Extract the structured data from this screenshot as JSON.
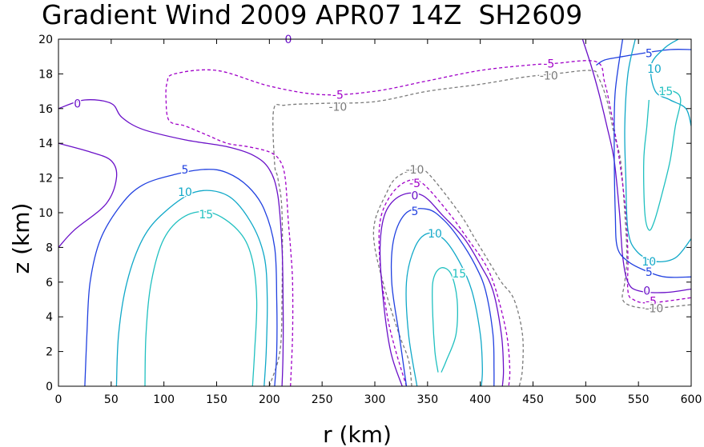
{
  "chart_data": {
    "type": "contour",
    "title": "Gradient Wind 2009 APR07 14Z  SH2609",
    "xlabel": "r (km)",
    "ylabel": "z (km)",
    "xlim": [
      0,
      600
    ],
    "ylim": [
      0,
      20
    ],
    "xticks": [
      "0",
      "50",
      "100",
      "150",
      "200",
      "250",
      "300",
      "350",
      "400",
      "450",
      "500",
      "550",
      "600"
    ],
    "yticks": [
      "0",
      "2",
      "4",
      "6",
      "8",
      "10",
      "12",
      "14",
      "16",
      "18",
      "20"
    ],
    "grid": false,
    "colors": {
      "-10": "#7a7a7a",
      "-5": "#a000c8",
      "0": "#6a10c8",
      "5": "#2040e0",
      "10": "#10a8c8",
      "15": "#20c0c0"
    },
    "contours": [
      {
        "level": -10,
        "style": "dashed",
        "points": [
          [
            200,
            0
          ],
          [
            210,
            2
          ],
          [
            212,
            5
          ],
          [
            212,
            10
          ],
          [
            208,
            12
          ],
          [
            205,
            12.8
          ],
          [
            204,
            15.9
          ],
          [
            215,
            16.2
          ],
          [
            250,
            16.3
          ],
          [
            300,
            16.4
          ],
          [
            350,
            17
          ],
          [
            400,
            17.4
          ],
          [
            440,
            17.8
          ],
          [
            470,
            18
          ],
          [
            505,
            18.2
          ],
          [
            512,
            17.8
          ],
          [
            520,
            16.5
          ],
          [
            527,
            14.5
          ],
          [
            533,
            13
          ],
          [
            537,
            10
          ],
          [
            539,
            7.5
          ],
          [
            537,
            6
          ],
          [
            535,
            5
          ],
          [
            545,
            4.6
          ],
          [
            565,
            4.5
          ],
          [
            600,
            4.7
          ]
        ]
      },
      {
        "level": -10,
        "style": "dashed",
        "points": [
          [
            335,
            0
          ],
          [
            332,
            1.5
          ],
          [
            323,
            3
          ],
          [
            310,
            5.5
          ],
          [
            300,
            8
          ],
          [
            300,
            9.5
          ],
          [
            310,
            11
          ],
          [
            320,
            12
          ],
          [
            338,
            12.5
          ],
          [
            350,
            12.3
          ],
          [
            380,
            10
          ],
          [
            395,
            8.5
          ],
          [
            410,
            7
          ],
          [
            420,
            6
          ],
          [
            432,
            5
          ],
          [
            440,
            3
          ],
          [
            440,
            1
          ],
          [
            437,
            0
          ]
        ]
      },
      {
        "level": -5,
        "style": "dashed",
        "points": [
          [
            220,
            0
          ],
          [
            222,
            3
          ],
          [
            222,
            6
          ],
          [
            220,
            8
          ],
          [
            218,
            9.5
          ],
          [
            215,
            12
          ],
          [
            210,
            13
          ],
          [
            200,
            13.5
          ],
          [
            180,
            13.8
          ],
          [
            160,
            14
          ],
          [
            140,
            14.5
          ],
          [
            120,
            15
          ],
          [
            105,
            15.3
          ],
          [
            102,
            16.5
          ],
          [
            103,
            17.5
          ],
          [
            110,
            18
          ],
          [
            150,
            18.2
          ],
          [
            200,
            17.3
          ],
          [
            250,
            16.8
          ],
          [
            300,
            17
          ],
          [
            350,
            17.6
          ],
          [
            400,
            18.2
          ],
          [
            445,
            18.5
          ],
          [
            470,
            18.6
          ],
          [
            510,
            18.7
          ],
          [
            518,
            17.5
          ],
          [
            525,
            15.5
          ],
          [
            532,
            13
          ],
          [
            538,
            10
          ],
          [
            540,
            7.5
          ],
          [
            540,
            5.5
          ],
          [
            545,
            5
          ],
          [
            560,
            4.8
          ],
          [
            600,
            5.1
          ]
        ]
      },
      {
        "level": -5,
        "style": "dashed",
        "points": [
          [
            330,
            0
          ],
          [
            320,
            2
          ],
          [
            312,
            4
          ],
          [
            305,
            7
          ],
          [
            305,
            9.5
          ],
          [
            315,
            11
          ],
          [
            330,
            11.8
          ],
          [
            345,
            11.7
          ],
          [
            370,
            10
          ],
          [
            388,
            8.5
          ],
          [
            405,
            7
          ],
          [
            415,
            5.5
          ],
          [
            425,
            3
          ],
          [
            428,
            1
          ],
          [
            427,
            0
          ]
        ]
      },
      {
        "level": 0,
        "style": "solid",
        "points": [
          [
            0,
            8
          ],
          [
            15,
            9
          ],
          [
            45,
            10.5
          ],
          [
            55,
            12
          ],
          [
            50,
            13
          ],
          [
            30,
            13.5
          ],
          [
            0,
            14
          ]
        ]
      },
      {
        "level": 0,
        "style": "solid",
        "points": [
          [
            0,
            16
          ],
          [
            25,
            16.5
          ],
          [
            50,
            16.3
          ],
          [
            60,
            15.5
          ],
          [
            80,
            14.8
          ],
          [
            120,
            14.2
          ],
          [
            160,
            13.8
          ],
          [
            185,
            13.3
          ],
          [
            200,
            12.5
          ],
          [
            208,
            11
          ],
          [
            212,
            8
          ],
          [
            213,
            5
          ],
          [
            213,
            2
          ],
          [
            212,
            0
          ]
        ]
      },
      {
        "level": 0,
        "style": "solid",
        "points": [
          [
            326,
            0
          ],
          [
            315,
            2
          ],
          [
            308,
            5
          ],
          [
            305,
            8
          ],
          [
            310,
            10
          ],
          [
            325,
            11
          ],
          [
            345,
            11
          ],
          [
            365,
            9.8
          ],
          [
            385,
            8.5
          ],
          [
            400,
            7
          ],
          [
            412,
            5.5
          ],
          [
            420,
            3
          ],
          [
            422,
            1
          ],
          [
            421,
            0
          ]
        ]
      },
      {
        "level": 0,
        "style": "solid",
        "points": [
          [
            497,
            20
          ],
          [
            505,
            18.5
          ],
          [
            512,
            17
          ],
          [
            520,
            15
          ],
          [
            527,
            13
          ],
          [
            532,
            10
          ],
          [
            535,
            7.5
          ],
          [
            540,
            6
          ],
          [
            550,
            5.5
          ],
          [
            575,
            5.4
          ],
          [
            600,
            5.6
          ]
        ]
      },
      {
        "level": 0,
        "style": "solid",
        "points": [
          [
            200,
            20
          ],
          [
            218,
            20.1
          ],
          [
            238,
            20
          ]
        ]
      },
      {
        "level": 5,
        "style": "solid",
        "points": [
          [
            25,
            0
          ],
          [
            27,
            3
          ],
          [
            30,
            6
          ],
          [
            40,
            8.5
          ],
          [
            60,
            10.5
          ],
          [
            80,
            11.6
          ],
          [
            110,
            12.2
          ],
          [
            140,
            12.5
          ],
          [
            160,
            12.3
          ],
          [
            180,
            11.5
          ],
          [
            195,
            10.2
          ],
          [
            205,
            8
          ],
          [
            207,
            5
          ],
          [
            207,
            2
          ],
          [
            205,
            0
          ]
        ]
      },
      {
        "level": 5,
        "style": "solid",
        "points": [
          [
            330,
            0
          ],
          [
            323,
            3
          ],
          [
            316,
            6
          ],
          [
            318,
            8.5
          ],
          [
            330,
            10
          ],
          [
            350,
            10.2
          ],
          [
            365,
            9.6
          ],
          [
            380,
            8.5
          ],
          [
            395,
            7
          ],
          [
            405,
            5.5
          ],
          [
            412,
            3
          ],
          [
            413,
            1
          ],
          [
            413,
            0
          ]
        ]
      },
      {
        "level": 5,
        "style": "solid",
        "points": [
          [
            510,
            18.5
          ],
          [
            518,
            18.8
          ],
          [
            535,
            19
          ],
          [
            555,
            19.2
          ],
          [
            580,
            19.4
          ],
          [
            600,
            19.4
          ]
        ]
      },
      {
        "level": 5,
        "style": "solid",
        "points": [
          [
            535,
            20
          ],
          [
            528,
            17
          ],
          [
            527,
            14
          ],
          [
            528,
            10
          ],
          [
            530,
            8
          ],
          [
            540,
            7.2
          ],
          [
            555,
            6.7
          ],
          [
            575,
            6.3
          ],
          [
            600,
            6.3
          ]
        ]
      },
      {
        "level": 10,
        "style": "solid",
        "points": [
          [
            55,
            0
          ],
          [
            57,
            3
          ],
          [
            65,
            6
          ],
          [
            80,
            8.5
          ],
          [
            100,
            10
          ],
          [
            130,
            11.2
          ],
          [
            160,
            11
          ],
          [
            182,
            9.5
          ],
          [
            195,
            7.5
          ],
          [
            198,
            5
          ],
          [
            197,
            2
          ],
          [
            195,
            0
          ]
        ]
      },
      {
        "level": 10,
        "style": "solid",
        "points": [
          [
            340,
            0
          ],
          [
            332,
            3
          ],
          [
            330,
            6
          ],
          [
            338,
            8
          ],
          [
            350,
            8.8
          ],
          [
            365,
            8.5
          ],
          [
            380,
            7.2
          ],
          [
            392,
            5.5
          ],
          [
            400,
            3
          ],
          [
            402,
            1
          ],
          [
            401,
            0
          ]
        ]
      },
      {
        "level": 10,
        "style": "solid",
        "points": [
          [
            547,
            20
          ],
          [
            540,
            18
          ],
          [
            537,
            15
          ],
          [
            538,
            12
          ],
          [
            540,
            9
          ],
          [
            548,
            7.8
          ],
          [
            565,
            7.2
          ],
          [
            585,
            7.4
          ],
          [
            600,
            8.5
          ]
        ]
      },
      {
        "level": 10,
        "style": "solid",
        "points": [
          [
            588,
            20
          ],
          [
            575,
            19.5
          ],
          [
            562,
            18.5
          ],
          [
            566,
            17
          ],
          [
            580,
            16.5
          ],
          [
            595,
            16
          ],
          [
            600,
            15
          ]
        ]
      },
      {
        "level": 15,
        "style": "solid",
        "points": [
          [
            82,
            0
          ],
          [
            83,
            3
          ],
          [
            88,
            6
          ],
          [
            100,
            8.5
          ],
          [
            120,
            9.8
          ],
          [
            145,
            10
          ],
          [
            170,
            9
          ],
          [
            183,
            7.5
          ],
          [
            188,
            5
          ],
          [
            186,
            2
          ],
          [
            184,
            0
          ]
        ]
      },
      {
        "level": 15,
        "style": "solid",
        "points": [
          [
            360,
            0.8
          ],
          [
            357,
            2
          ],
          [
            355,
            4
          ],
          [
            355,
            6
          ],
          [
            362,
            6.8
          ],
          [
            372,
            6.5
          ],
          [
            378,
            5
          ],
          [
            377,
            3
          ],
          [
            368,
            1.5
          ],
          [
            363,
            0.8
          ]
        ]
      },
      {
        "level": 15,
        "style": "solid",
        "points": [
          [
            560,
            16.5
          ],
          [
            558,
            15
          ],
          [
            555,
            13
          ],
          [
            556,
            10
          ],
          [
            560,
            9
          ],
          [
            565,
            9.5
          ],
          [
            572,
            11
          ],
          [
            580,
            13
          ],
          [
            585,
            15
          ],
          [
            590,
            16.5
          ],
          [
            583,
            17
          ],
          [
            570,
            17
          ]
        ]
      }
    ],
    "labels": [
      {
        "text": "0",
        "level": 0,
        "x": 18,
        "y": 16.3
      },
      {
        "text": "0",
        "level": 0,
        "x": 218,
        "y": 20
      },
      {
        "text": "-5",
        "level": -5,
        "x": 465,
        "y": 18.6
      },
      {
        "text": "-10",
        "level": -10,
        "x": 465,
        "y": 17.9
      },
      {
        "text": "-5",
        "level": -5,
        "x": 265,
        "y": 16.8
      },
      {
        "text": "-10",
        "level": -10,
        "x": 265,
        "y": 16.1
      },
      {
        "text": "5",
        "level": 5,
        "x": 120,
        "y": 12.5
      },
      {
        "text": "10",
        "level": 10,
        "x": 120,
        "y": 11.2
      },
      {
        "text": "15",
        "level": 15,
        "x": 140,
        "y": 9.9
      },
      {
        "text": "-10",
        "level": -10,
        "x": 338,
        "y": 12.5
      },
      {
        "text": "-5",
        "level": -5,
        "x": 338,
        "y": 11.7
      },
      {
        "text": "0",
        "level": 0,
        "x": 338,
        "y": 11
      },
      {
        "text": "5",
        "level": 5,
        "x": 338,
        "y": 10.1
      },
      {
        "text": "10",
        "level": 10,
        "x": 357,
        "y": 8.8
      },
      {
        "text": "15",
        "level": 15,
        "x": 380,
        "y": 6.5
      },
      {
        "text": "5",
        "level": 5,
        "x": 560,
        "y": 19.2
      },
      {
        "text": "10",
        "level": 10,
        "x": 565,
        "y": 18.3
      },
      {
        "text": "15",
        "level": 15,
        "x": 576,
        "y": 17
      },
      {
        "text": "10",
        "level": 10,
        "x": 560,
        "y": 7.2
      },
      {
        "text": "5",
        "level": 5,
        "x": 560,
        "y": 6.6
      },
      {
        "text": "0",
        "level": 0,
        "x": 558,
        "y": 5.5
      },
      {
        "text": "-5",
        "level": -5,
        "x": 562,
        "y": 4.9
      },
      {
        "text": "-10",
        "level": -10,
        "x": 565,
        "y": 4.5
      }
    ]
  }
}
